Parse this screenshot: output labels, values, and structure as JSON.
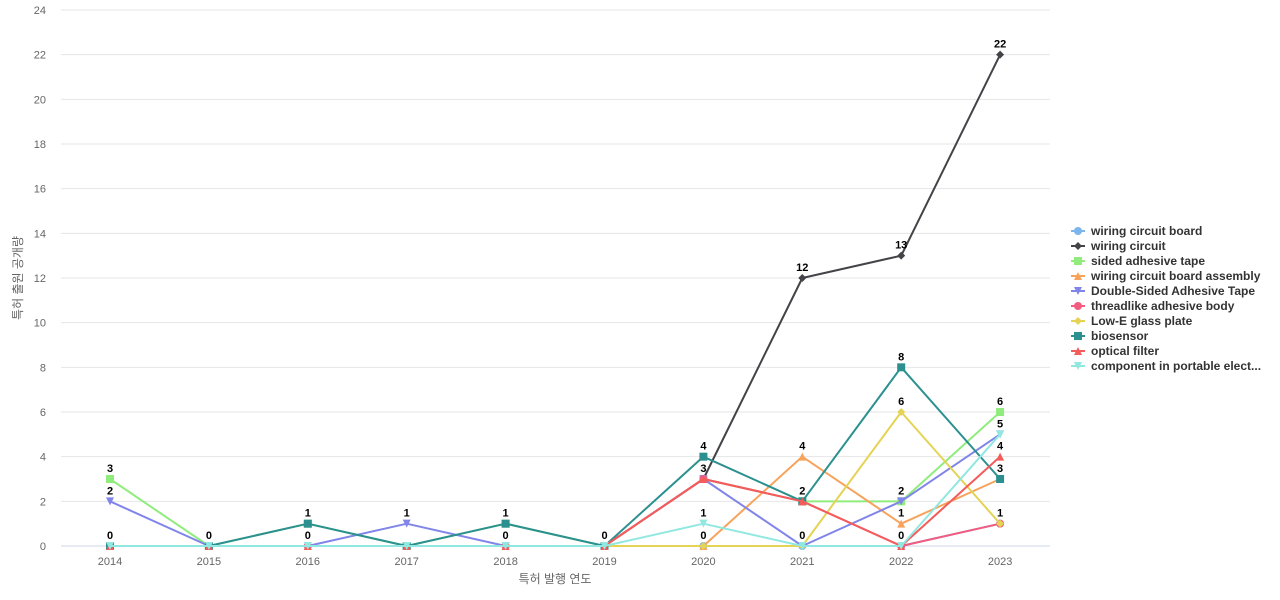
{
  "chart_data": {
    "type": "line",
    "title": "",
    "xlabel": "특허 발행 연도",
    "ylabel": "특허 출원 공개량",
    "x": [
      "2014",
      "2015",
      "2016",
      "2017",
      "2018",
      "2019",
      "2020",
      "2021",
      "2022",
      "2023"
    ],
    "ylim": [
      0,
      24
    ],
    "yticks": [
      0,
      2,
      4,
      6,
      8,
      10,
      12,
      14,
      16,
      18,
      20,
      22,
      24
    ],
    "grid": true,
    "legend_position": "right",
    "series": [
      {
        "name": "wiring circuit board",
        "color": "#7cb5ec",
        "marker": "circle",
        "values": [
          0,
          0,
          0,
          0,
          0,
          0,
          0,
          0,
          0,
          1
        ],
        "labels": [
          false,
          false,
          false,
          false,
          false,
          false,
          false,
          false,
          false,
          false
        ]
      },
      {
        "name": "wiring circuit",
        "color": "#434348",
        "marker": "diamond",
        "values": [
          0,
          0,
          0,
          0,
          0,
          0,
          3,
          12,
          13,
          22
        ],
        "labels": [
          false,
          false,
          false,
          false,
          false,
          false,
          false,
          true,
          true,
          true
        ]
      },
      {
        "name": "sided adhesive tape",
        "color": "#90ed7d",
        "marker": "square",
        "values": [
          3,
          0,
          1,
          0,
          1,
          0,
          3,
          2,
          2,
          6
        ],
        "labels": [
          true,
          false,
          false,
          false,
          false,
          false,
          false,
          false,
          false,
          true
        ]
      },
      {
        "name": "wiring circuit board assembly",
        "color": "#f7a35c",
        "marker": "triangle",
        "values": [
          0,
          0,
          0,
          0,
          0,
          0,
          0,
          4,
          1,
          3
        ],
        "labels": [
          false,
          false,
          false,
          false,
          false,
          false,
          true,
          true,
          true,
          false
        ]
      },
      {
        "name": "Double-Sided Adhesive Tape",
        "color": "#8085e9",
        "marker": "triangle-down",
        "values": [
          2,
          0,
          0,
          1,
          0,
          0,
          3,
          0,
          2,
          5
        ],
        "labels": [
          true,
          false,
          true,
          true,
          true,
          false,
          false,
          true,
          true,
          true
        ]
      },
      {
        "name": "threadlike adhesive body",
        "color": "#f15c80",
        "marker": "circle",
        "values": [
          0,
          0,
          0,
          0,
          0,
          0,
          3,
          2,
          0,
          1
        ],
        "labels": [
          false,
          false,
          false,
          false,
          false,
          false,
          false,
          false,
          false,
          false
        ]
      },
      {
        "name": "Low-E glass plate",
        "color": "#e4d354",
        "marker": "diamond",
        "values": [
          0,
          0,
          0,
          0,
          0,
          0,
          0,
          0,
          6,
          1
        ],
        "labels": [
          false,
          false,
          false,
          false,
          false,
          false,
          false,
          false,
          true,
          true
        ]
      },
      {
        "name": "biosensor",
        "color": "#2b908f",
        "marker": "square",
        "values": [
          0,
          0,
          1,
          0,
          1,
          0,
          4,
          2,
          8,
          3
        ],
        "labels": [
          false,
          true,
          true,
          false,
          true,
          true,
          true,
          true,
          true,
          true
        ]
      },
      {
        "name": "optical filter",
        "color": "#f45b5b",
        "marker": "triangle",
        "values": [
          0,
          0,
          0,
          0,
          0,
          0,
          3,
          2,
          0,
          4
        ],
        "labels": [
          false,
          false,
          false,
          false,
          false,
          false,
          true,
          false,
          true,
          true
        ]
      },
      {
        "name": "component in portable elect...",
        "color": "#91e8e1",
        "marker": "triangle-down",
        "values": [
          0,
          0,
          0,
          0,
          0,
          0,
          1,
          0,
          0,
          5
        ],
        "labels": [
          true,
          false,
          false,
          false,
          false,
          false,
          true,
          false,
          false,
          false
        ]
      }
    ]
  }
}
